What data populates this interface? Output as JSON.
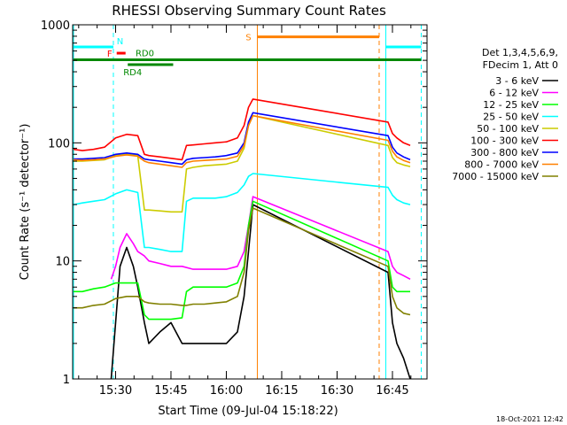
{
  "chart_data": {
    "type": "line",
    "title": "RHESSI Observing Summary Count Rates",
    "xlabel": "Start Time (09-Jul-04 15:18:22)",
    "ylabel": "Count Rate (s⁻¹ detector⁻¹)",
    "yscale": "log",
    "ylim": [
      1,
      1000
    ],
    "xlim": [
      15.3061,
      16.9061
    ],
    "x_ticks": [
      {
        "value": 15.5,
        "label": "15:30"
      },
      {
        "value": 15.75,
        "label": "15:45"
      },
      {
        "value": 16.0,
        "label": "16:00"
      },
      {
        "value": 16.25,
        "label": "16:15"
      },
      {
        "value": 16.5,
        "label": "16:30"
      },
      {
        "value": 16.75,
        "label": "16:45"
      }
    ],
    "y_ticks": [
      {
        "value": 1,
        "label": "1"
      },
      {
        "value": 10,
        "label": "10"
      },
      {
        "value": 100,
        "label": "100"
      },
      {
        "value": 1000,
        "label": "1000"
      }
    ],
    "legend": {
      "placement": "right",
      "header": [
        "Det 1,3,4,5,6,9,",
        "FDecim 1, Att 0"
      ]
    },
    "series": [
      {
        "name": "3 - 6 keV",
        "color": "#000000",
        "x": [
          15.31,
          15.48,
          15.5,
          15.52,
          15.55,
          15.58,
          15.6,
          15.63,
          15.65,
          15.7,
          15.75,
          15.8,
          15.85,
          15.9,
          15.95,
          16.0,
          16.05,
          16.08,
          16.1,
          16.12,
          16.73,
          16.75,
          16.77,
          16.8,
          16.83
        ],
        "y": [
          null,
          1,
          3,
          9,
          13,
          9,
          6,
          3,
          2,
          2.5,
          3,
          2,
          2,
          2,
          2,
          2,
          2.5,
          5,
          12,
          30,
          8,
          3,
          2,
          1.5,
          1
        ]
      },
      {
        "name": "6 - 12 keV",
        "color": "#ff00ff",
        "x": [
          15.31,
          15.48,
          15.5,
          15.52,
          15.55,
          15.58,
          15.6,
          15.63,
          15.65,
          15.7,
          15.75,
          15.8,
          15.85,
          15.9,
          15.95,
          16.0,
          16.05,
          16.08,
          16.1,
          16.12,
          16.73,
          16.75,
          16.77,
          16.8,
          16.83
        ],
        "y": [
          null,
          7,
          9,
          13,
          17,
          14,
          12,
          11,
          10,
          9.5,
          9,
          9,
          8.5,
          8.5,
          8.5,
          8.5,
          9,
          12,
          20,
          35,
          12,
          9,
          8,
          7.5,
          7
        ]
      },
      {
        "name": "12 - 25 keV",
        "color": "#00ff00",
        "x": [
          15.31,
          15.35,
          15.4,
          15.45,
          15.5,
          15.55,
          15.6,
          15.63,
          15.65,
          15.7,
          15.75,
          15.8,
          15.82,
          15.85,
          15.9,
          15.95,
          16.0,
          16.05,
          16.08,
          16.1,
          16.12,
          16.73,
          16.75,
          16.77,
          16.8,
          16.83
        ],
        "y": [
          5.5,
          5.5,
          5.8,
          6,
          6.5,
          6.5,
          6.5,
          3.5,
          3.2,
          3.2,
          3.2,
          3.3,
          5.5,
          6,
          6,
          6,
          6,
          6.5,
          9,
          20,
          32,
          10,
          6,
          5.5,
          5.5,
          5.5
        ]
      },
      {
        "name": "25 - 50 keV",
        "color": "#00ffff",
        "x": [
          15.31,
          15.35,
          15.4,
          15.45,
          15.5,
          15.55,
          15.6,
          15.63,
          15.65,
          15.7,
          15.75,
          15.8,
          15.82,
          15.85,
          15.9,
          15.95,
          16.0,
          16.05,
          16.08,
          16.1,
          16.12,
          16.73,
          16.75,
          16.77,
          16.8,
          16.83
        ],
        "y": [
          30,
          31,
          32,
          33,
          37,
          40,
          38,
          13,
          13,
          12.5,
          12,
          12,
          32,
          34,
          34,
          34,
          35,
          38,
          44,
          52,
          55,
          42,
          36,
          33,
          31,
          30
        ]
      },
      {
        "name": "50 - 100 keV",
        "color": "#cccc00",
        "x": [
          15.31,
          15.35,
          15.4,
          15.45,
          15.5,
          15.55,
          15.6,
          15.63,
          15.65,
          15.7,
          15.75,
          15.8,
          15.82,
          15.85,
          15.9,
          15.95,
          16.0,
          16.05,
          16.08,
          16.1,
          16.12,
          16.73,
          16.75,
          16.77,
          16.8,
          16.83
        ],
        "y": [
          70,
          70,
          71,
          72,
          78,
          80,
          78,
          27,
          27,
          26.5,
          26,
          26,
          60,
          62,
          64,
          65,
          66,
          70,
          90,
          140,
          170,
          95,
          75,
          68,
          65,
          63
        ]
      },
      {
        "name": "100 - 300 keV",
        "color": "#ff0000",
        "x": [
          15.31,
          15.35,
          15.4,
          15.45,
          15.5,
          15.55,
          15.6,
          15.63,
          15.65,
          15.7,
          15.75,
          15.8,
          15.82,
          15.85,
          15.9,
          15.95,
          16.0,
          16.05,
          16.08,
          16.1,
          16.12,
          16.73,
          16.75,
          16.77,
          16.8,
          16.83
        ],
        "y": [
          88,
          86,
          88,
          92,
          110,
          118,
          115,
          80,
          78,
          76,
          74,
          72,
          95,
          96,
          98,
          100,
          102,
          110,
          140,
          200,
          235,
          150,
          120,
          110,
          100,
          95
        ]
      },
      {
        "name": "300 - 800 keV",
        "color": "#0000ff",
        "x": [
          15.31,
          15.35,
          15.4,
          15.45,
          15.5,
          15.55,
          15.6,
          15.63,
          15.65,
          15.7,
          15.75,
          15.8,
          15.82,
          15.85,
          15.9,
          15.95,
          16.0,
          16.05,
          16.08,
          16.1,
          16.12,
          16.73,
          16.75,
          16.77,
          16.8,
          16.83
        ],
        "y": [
          73,
          73,
          74,
          75,
          80,
          82,
          80,
          73,
          72,
          70,
          68,
          66,
          72,
          74,
          75,
          76,
          78,
          82,
          100,
          150,
          180,
          115,
          92,
          82,
          76,
          72
        ]
      },
      {
        "name": "800 - 7000 keV",
        "color": "#ff8000",
        "x": [
          15.31,
          15.35,
          15.4,
          15.45,
          15.5,
          15.55,
          15.6,
          15.63,
          15.65,
          15.7,
          15.75,
          15.8,
          15.82,
          15.85,
          15.9,
          15.95,
          16.0,
          16.05,
          16.08,
          16.1,
          16.12,
          16.73,
          16.75,
          16.77,
          16.8,
          16.83
        ],
        "y": [
          72,
          71,
          72,
          73,
          77,
          79,
          77,
          70,
          68,
          66,
          64,
          62,
          68,
          70,
          71,
          72,
          73,
          77,
          95,
          140,
          170,
          105,
          85,
          76,
          71,
          68
        ]
      },
      {
        "name": "7000 - 15000 keV",
        "color": "#808000",
        "x": [
          15.31,
          15.35,
          15.4,
          15.45,
          15.5,
          15.55,
          15.6,
          15.63,
          15.65,
          15.7,
          15.75,
          15.8,
          15.82,
          15.85,
          15.9,
          15.95,
          16.0,
          16.05,
          16.08,
          16.1,
          16.12,
          16.73,
          16.75,
          16.77,
          16.8,
          16.83
        ],
        "y": [
          4,
          4,
          4.2,
          4.3,
          4.8,
          5,
          5,
          4.5,
          4.4,
          4.3,
          4.3,
          4.2,
          4.2,
          4.3,
          4.3,
          4.4,
          4.5,
          5,
          8,
          18,
          28,
          9,
          5,
          4,
          3.6,
          3.5
        ]
      }
    ],
    "annotations": [
      {
        "label": "N",
        "color": "#00ffff",
        "x_start": 15.31,
        "x_end": 15.49,
        "y": 650
      },
      {
        "label": "N",
        "color": "#00ffff",
        "x_start": 16.72,
        "x_end": 16.88,
        "y": 650
      },
      {
        "label": "F",
        "color": "#ff0000",
        "x_start": 15.505,
        "x_end": 15.545,
        "y": 575
      },
      {
        "label": "RD0",
        "color": "#008800",
        "x_start": 15.31,
        "x_end": 16.88,
        "y": 505
      },
      {
        "label": "RD4",
        "color": "#008800",
        "x_start": 15.555,
        "x_end": 15.76,
        "y": 460
      },
      {
        "label": "S",
        "color": "#ff8000",
        "x_start": 16.14,
        "x_end": 16.69,
        "y": 790
      }
    ],
    "vertical_markers": [
      {
        "x": 15.31,
        "color": "#00ffff",
        "style": "solid"
      },
      {
        "x": 15.49,
        "color": "#00ffff",
        "style": "dashed"
      },
      {
        "x": 16.14,
        "color": "#ff8000",
        "style": "solid"
      },
      {
        "x": 16.69,
        "color": "#ff8000",
        "style": "dashed"
      },
      {
        "x": 16.72,
        "color": "#00ffff",
        "style": "solid"
      },
      {
        "x": 16.88,
        "color": "#00ffff",
        "style": "dashed"
      }
    ],
    "footer": "18-Oct-2021 12:42"
  }
}
